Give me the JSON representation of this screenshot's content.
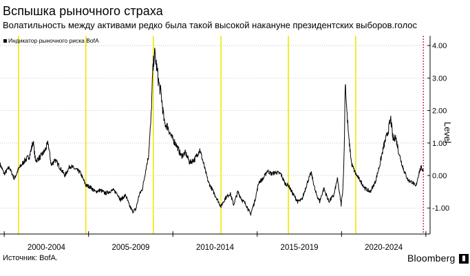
{
  "title": "Вспышка рыночного страха",
  "subtitle": "Волатильность между активами редко была такой высокой накануне президентских выборов.голос",
  "source": "Источник: BofA.",
  "brand": "Bloomberg",
  "brand_icon": "bloomberg-terminal-icon",
  "colors": {
    "line": "#000000",
    "election_marker": "#f2e600",
    "latest_marker": "#b0005a",
    "grid": "#b8b8b8"
  },
  "chart_data": {
    "type": "line",
    "title": "Вспышка рыночного страха",
    "subtitle": "Волатильность между активами редко была такой высокой накануне президентских выборов.голос",
    "ylabel": "Level",
    "ylim": [
      -1.8,
      4.3
    ],
    "xlim": [
      1999.75,
      2025.25
    ],
    "y_ticks": [
      4.0,
      3.0,
      2.0,
      1.0,
      0.0,
      -1.0
    ],
    "y_tick_labels": [
      "4.00",
      "3.00",
      "2.00",
      "1.00",
      "0.00",
      "-1.00"
    ],
    "x_tick_labels": [
      "2000-2004",
      "2005-2009",
      "2010-2014",
      "2015-2019",
      "2020-2024"
    ],
    "x_tick_centers": [
      2002.5,
      2007.5,
      2012.5,
      2017.5,
      2022.5
    ],
    "x_range_dividers": [
      2000,
      2005,
      2010,
      2015,
      2020,
      2025
    ],
    "y_axis_position": "right",
    "grid": "horizontal dotted",
    "legend": {
      "position": "top-left",
      "label": "Индикатор рыночного риска BofA"
    },
    "election_lines": [
      2000.85,
      2004.84,
      2008.84,
      2012.85,
      2016.85,
      2020.84
    ],
    "latest_line": 2024.85,
    "series": [
      {
        "name": "Индикатор рыночного риска BofA",
        "points": [
          [
            1999.75,
            0.35
          ],
          [
            2000.0,
            0.05
          ],
          [
            2000.3,
            0.25
          ],
          [
            2000.6,
            -0.1
          ],
          [
            2000.85,
            0.2
          ],
          [
            2001.2,
            0.45
          ],
          [
            2001.5,
            0.6
          ],
          [
            2001.72,
            1.05
          ],
          [
            2001.85,
            0.45
          ],
          [
            2002.1,
            0.55
          ],
          [
            2002.4,
            0.75
          ],
          [
            2002.6,
            1.0
          ],
          [
            2002.8,
            0.3
          ],
          [
            2003.0,
            0.5
          ],
          [
            2003.3,
            0.25
          ],
          [
            2003.6,
            0.0
          ],
          [
            2003.9,
            0.3
          ],
          [
            2004.2,
            0.2
          ],
          [
            2004.5,
            0.1
          ],
          [
            2004.84,
            -0.3
          ],
          [
            2005.1,
            -0.35
          ],
          [
            2005.4,
            -0.5
          ],
          [
            2005.7,
            -0.45
          ],
          [
            2006.0,
            -0.55
          ],
          [
            2006.2,
            -0.5
          ],
          [
            2006.45,
            -0.45
          ],
          [
            2006.7,
            -0.55
          ],
          [
            2006.9,
            -0.75
          ],
          [
            2007.2,
            -0.6
          ],
          [
            2007.4,
            -0.9
          ],
          [
            2007.6,
            -1.1
          ],
          [
            2007.8,
            -1.05
          ],
          [
            2008.0,
            -0.6
          ],
          [
            2008.2,
            -0.4
          ],
          [
            2008.4,
            0.2
          ],
          [
            2008.55,
            0.6
          ],
          [
            2008.7,
            1.7
          ],
          [
            2008.8,
            3.1
          ],
          [
            2008.9,
            3.8
          ],
          [
            2009.0,
            3.5
          ],
          [
            2009.15,
            2.9
          ],
          [
            2009.3,
            2.5
          ],
          [
            2009.5,
            1.6
          ],
          [
            2009.7,
            1.5
          ],
          [
            2009.9,
            1.2
          ],
          [
            2010.2,
            0.95
          ],
          [
            2010.5,
            0.6
          ],
          [
            2010.75,
            0.7
          ],
          [
            2011.0,
            0.4
          ],
          [
            2011.3,
            0.5
          ],
          [
            2011.6,
            0.8
          ],
          [
            2011.85,
            0.3
          ],
          [
            2012.1,
            -0.2
          ],
          [
            2012.4,
            -0.5
          ],
          [
            2012.7,
            -0.8
          ],
          [
            2012.85,
            -0.95
          ],
          [
            2013.1,
            -0.7
          ],
          [
            2013.4,
            -0.55
          ],
          [
            2013.6,
            -0.9
          ],
          [
            2013.85,
            -0.5
          ],
          [
            2014.1,
            -0.75
          ],
          [
            2014.35,
            -0.9
          ],
          [
            2014.6,
            -1.2
          ],
          [
            2014.85,
            -0.8
          ],
          [
            2015.1,
            -0.2
          ],
          [
            2015.35,
            -0.1
          ],
          [
            2015.6,
            0.15
          ],
          [
            2015.85,
            0.05
          ],
          [
            2016.1,
            0.1
          ],
          [
            2016.4,
            0.05
          ],
          [
            2016.65,
            -0.25
          ],
          [
            2016.85,
            -0.3
          ],
          [
            2017.1,
            -0.55
          ],
          [
            2017.4,
            -0.8
          ],
          [
            2017.65,
            -0.75
          ],
          [
            2017.95,
            -0.25
          ],
          [
            2018.2,
            0.1
          ],
          [
            2018.45,
            -0.5
          ],
          [
            2018.7,
            -0.8
          ],
          [
            2018.95,
            -0.4
          ],
          [
            2019.25,
            -0.8
          ],
          [
            2019.55,
            -0.6
          ],
          [
            2019.75,
            -0.1
          ],
          [
            2019.98,
            -0.9
          ],
          [
            2020.08,
            -0.4
          ],
          [
            2020.16,
            0.8
          ],
          [
            2020.22,
            2.95
          ],
          [
            2020.3,
            2.1
          ],
          [
            2020.42,
            1.2
          ],
          [
            2020.6,
            0.35
          ],
          [
            2020.84,
            0.05
          ],
          [
            2021.1,
            -0.15
          ],
          [
            2021.4,
            -0.4
          ],
          [
            2021.7,
            -0.5
          ],
          [
            2022.0,
            -0.2
          ],
          [
            2022.25,
            0.3
          ],
          [
            2022.5,
            0.9
          ],
          [
            2022.75,
            1.35
          ],
          [
            2022.92,
            1.75
          ],
          [
            2023.05,
            1.1
          ],
          [
            2023.2,
            1.2
          ],
          [
            2023.45,
            0.6
          ],
          [
            2023.7,
            0.15
          ],
          [
            2023.95,
            -0.15
          ],
          [
            2024.2,
            -0.2
          ],
          [
            2024.4,
            -0.35
          ],
          [
            2024.6,
            0.1
          ],
          [
            2024.72,
            0.25
          ],
          [
            2024.85,
            0.15
          ]
        ]
      }
    ]
  }
}
